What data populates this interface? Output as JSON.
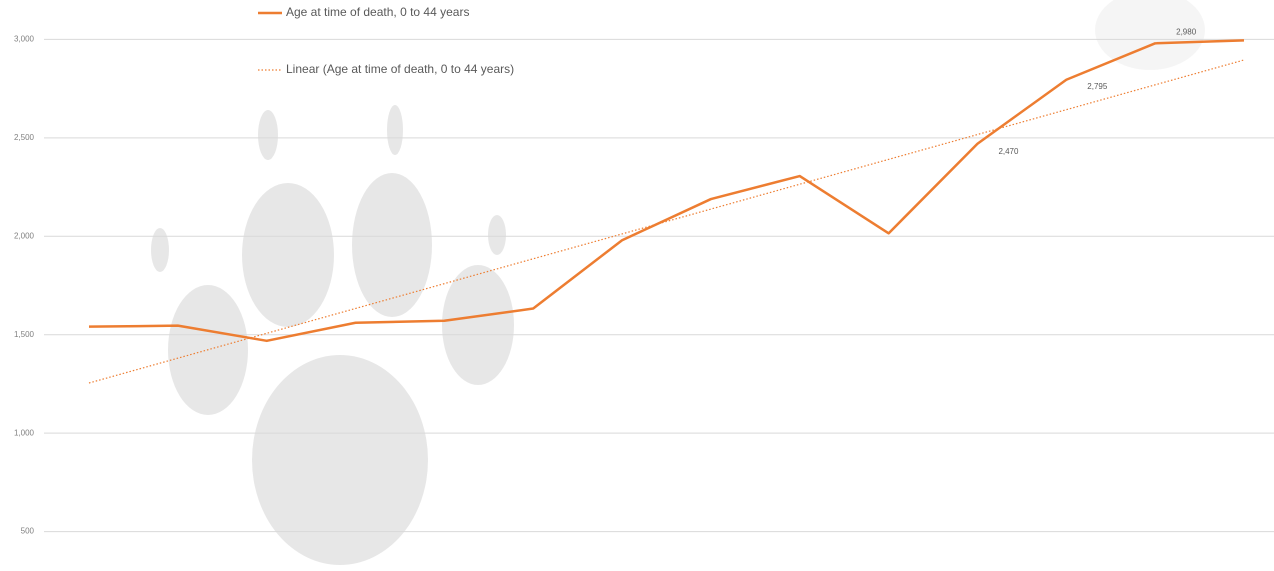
{
  "chart_data": {
    "type": "line",
    "categories": [
      null,
      null,
      null,
      null,
      null,
      null,
      null,
      null,
      null,
      null,
      null,
      null,
      null,
      null
    ],
    "series": [
      {
        "name": "Age at time of death, 0 to 44 years",
        "color": "#ed7d31",
        "values": [
          1541,
          1546,
          1469,
          1561,
          1571,
          1633,
          1980,
          2189,
          2306,
          2015,
          2470,
          2795,
          2980,
          2995
        ],
        "value_labels": [
          null,
          null,
          null,
          null,
          null,
          null,
          null,
          null,
          null,
          null,
          "2,470",
          "2,795",
          "2,980",
          null
        ]
      },
      {
        "name": "Linear (Age at time of death, 0 to 44 years)",
        "color": "#ed7d31",
        "trendline": "linear",
        "of_series": 0
      }
    ],
    "ylim": [
      300,
      3200
    ],
    "yticks": [
      500,
      {
        "value": 1000,
        "label": "1,000"
      },
      {
        "value": 1500,
        "label": "1,500"
      },
      {
        "value": 2000,
        "label": "2,000"
      },
      {
        "value": 2500,
        "label": "2,500"
      },
      {
        "value": 3000,
        "label": "3,000"
      }
    ],
    "grid": true
  }
}
